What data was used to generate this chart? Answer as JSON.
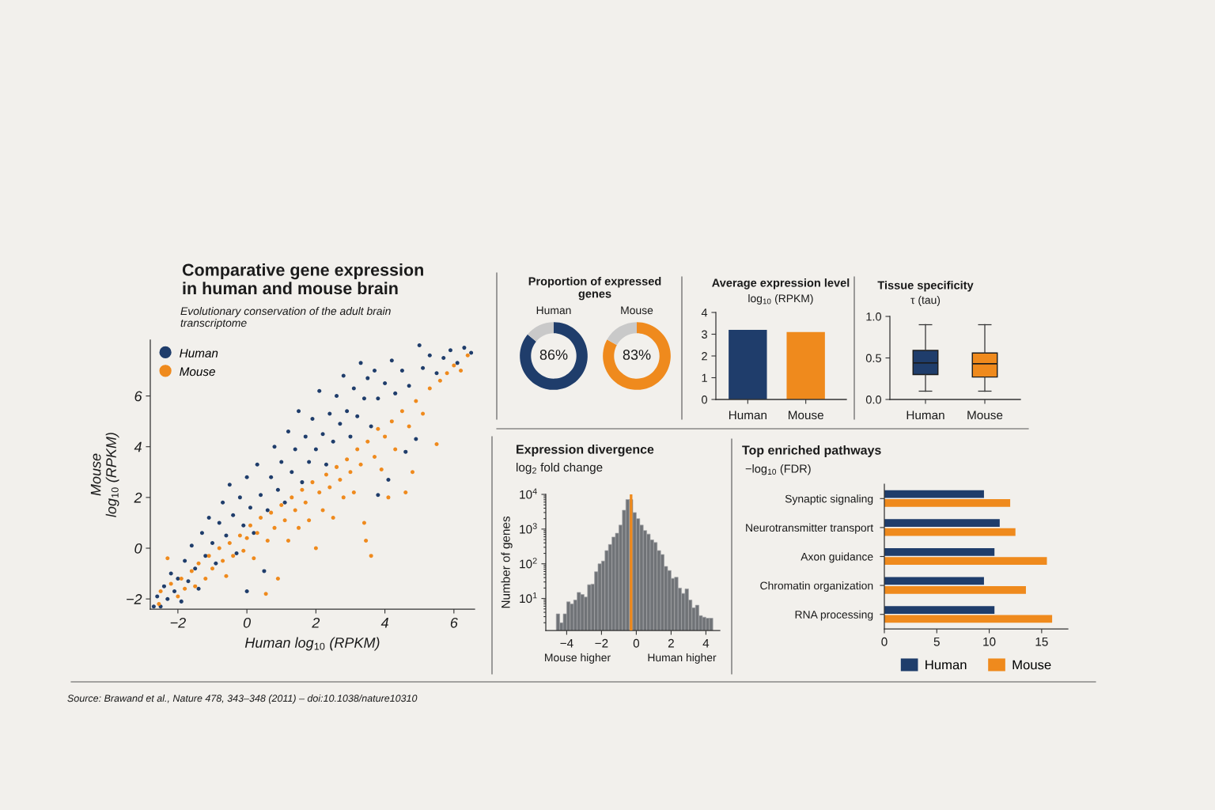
{
  "chart_data": [
    {
      "type": "scatter",
      "title": "Comparative gene expression\nin human and mouse brain",
      "subtitle": "Evolutionary conservation of the adult brain\ntranscriptome",
      "xlabel": "Human log$_{10}$ (RPKM)",
      "ylabel": "Mouse\nlog$_{10}$ (RPKM)",
      "xlim": [
        -2.8,
        6.6
      ],
      "ylim": [
        -2.4,
        8.2
      ],
      "xticks": [
        -2,
        0,
        2,
        4,
        6
      ],
      "yticks": [
        -2,
        0,
        2,
        4,
        6
      ],
      "marker": "circle",
      "legend": "top left",
      "annotations": [
        "Source: Brawand et al., Nature 478, 343–348 (2011) – doi:10.1038/nature10310"
      ],
      "series": [
        {
          "name": "Human",
          "color": "#1f3d6b",
          "x": [
            -2.7,
            -2.6,
            -2.5,
            -2.4,
            -2.3,
            -2.2,
            -2.1,
            -2.0,
            -1.9,
            -1.8,
            -1.7,
            -1.6,
            -1.5,
            -1.4,
            -1.3,
            -1.2,
            -1.1,
            -1.0,
            -0.9,
            -0.8,
            -0.7,
            -0.6,
            -0.5,
            -0.4,
            -0.3,
            -0.2,
            -0.1,
            0.0,
            0.0,
            0.1,
            0.2,
            0.3,
            0.4,
            0.5,
            0.6,
            0.7,
            0.8,
            0.9,
            1.0,
            1.1,
            1.2,
            1.3,
            1.4,
            1.5,
            1.6,
            1.7,
            1.8,
            1.9,
            2.0,
            2.1,
            2.2,
            2.3,
            2.4,
            2.5,
            2.6,
            2.7,
            2.8,
            2.9,
            3.0,
            3.1,
            3.2,
            3.3,
            3.4,
            3.5,
            3.6,
            3.7,
            3.8,
            3.8,
            4.0,
            4.1,
            4.2,
            4.3,
            4.5,
            4.6,
            4.7,
            4.9,
            5.0,
            5.1,
            5.3,
            5.5,
            5.7,
            5.9,
            6.1,
            6.3,
            6.5
          ],
          "values": [
            -2.3,
            -1.9,
            -2.3,
            -1.5,
            -2.0,
            -1.0,
            -1.7,
            -1.2,
            -2.1,
            -0.5,
            -1.3,
            0.1,
            -0.8,
            -1.6,
            0.6,
            -0.3,
            1.2,
            0.2,
            -0.6,
            1.0,
            1.8,
            0.5,
            2.5,
            1.3,
            -0.2,
            2.0,
            0.9,
            2.8,
            -1.7,
            1.6,
            0.6,
            3.3,
            2.1,
            -0.9,
            1.5,
            2.8,
            4.0,
            2.3,
            3.4,
            1.8,
            4.6,
            3.0,
            3.9,
            5.4,
            2.6,
            4.4,
            3.4,
            5.1,
            3.9,
            6.2,
            4.5,
            3.3,
            5.3,
            4.2,
            6.0,
            4.9,
            6.8,
            5.4,
            4.4,
            6.3,
            5.2,
            7.3,
            5.9,
            6.7,
            4.8,
            7.0,
            5.9,
            2.1,
            6.5,
            2.7,
            7.4,
            6.1,
            7.0,
            3.8,
            6.4,
            4.3,
            8.0,
            7.1,
            7.6,
            6.9,
            7.5,
            7.8,
            7.3,
            7.9,
            7.7
          ]
        },
        {
          "name": "Mouse",
          "color": "#ef8a1d",
          "x": [
            -2.55,
            -2.5,
            -2.3,
            -2.2,
            -2.0,
            -1.9,
            -1.8,
            -1.6,
            -1.5,
            -1.4,
            -1.2,
            -1.1,
            -1.0,
            -0.8,
            -0.7,
            -0.6,
            -0.5,
            -0.4,
            -0.2,
            -0.1,
            0.0,
            0.1,
            0.2,
            0.3,
            0.4,
            0.55,
            0.6,
            0.7,
            0.8,
            0.9,
            1.0,
            1.1,
            1.2,
            1.3,
            1.4,
            1.5,
            1.6,
            1.7,
            1.8,
            1.9,
            2.0,
            2.1,
            2.2,
            2.3,
            2.4,
            2.5,
            2.6,
            2.7,
            2.8,
            2.9,
            3.0,
            3.1,
            3.2,
            3.3,
            3.4,
            3.45,
            3.5,
            3.6,
            3.7,
            3.8,
            3.9,
            4.0,
            4.1,
            4.2,
            4.3,
            4.5,
            4.6,
            4.7,
            4.8,
            4.9,
            5.1,
            5.3,
            5.5,
            5.6,
            5.8,
            6.0,
            6.2,
            6.4
          ],
          "values": [
            -2.2,
            -1.7,
            -0.4,
            -1.4,
            -1.9,
            -1.2,
            -1.6,
            -0.9,
            -1.5,
            -0.6,
            -1.2,
            -0.3,
            -0.8,
            0.0,
            -0.5,
            -1.1,
            0.2,
            -0.3,
            0.5,
            -0.1,
            0.4,
            0.9,
            -0.4,
            0.6,
            1.2,
            -1.8,
            0.3,
            1.4,
            0.8,
            -1.2,
            1.7,
            1.1,
            0.3,
            2.0,
            1.5,
            0.8,
            2.3,
            1.8,
            1.1,
            2.6,
            0.0,
            2.2,
            1.5,
            2.9,
            2.4,
            1.2,
            3.2,
            2.7,
            2.0,
            3.5,
            3.0,
            2.2,
            3.9,
            3.3,
            1.0,
            0.3,
            4.2,
            -0.3,
            3.6,
            4.7,
            3.1,
            4.4,
            2.0,
            5.0,
            3.9,
            5.4,
            2.2,
            4.8,
            3.0,
            5.8,
            5.3,
            6.3,
            4.1,
            6.6,
            6.9,
            7.2,
            7.0,
            7.6
          ]
        }
      ]
    },
    {
      "type": "donut",
      "title": "Proportion of expressed\ngenes",
      "subtitle": "Human",
      "categories": [
        null,
        null
      ],
      "values": [
        86,
        14
      ],
      "colors": [
        "#1f3d6b",
        "#c9c9c9"
      ],
      "annotations": [
        "86%"
      ]
    },
    {
      "type": "donut",
      "subtitle": "Mouse",
      "categories": [
        null,
        null
      ],
      "values": [
        83,
        17
      ],
      "colors": [
        "#ef8a1d",
        "#c9c9c9"
      ],
      "annotations": [
        "83%"
      ]
    },
    {
      "type": "bar",
      "title": "Average expression level",
      "subtitle": "log$_{10}$ (RPKM)",
      "categories": [
        "Human",
        "Mouse"
      ],
      "values": [
        3.2,
        3.1
      ],
      "colors": [
        "#1f3d6b",
        "#ef8a1d"
      ],
      "ylim": [
        0,
        4
      ],
      "yticks": [
        0,
        1,
        2,
        3,
        4
      ]
    },
    {
      "type": "box",
      "title": "Tissue specificity",
      "subtitle": "τ (tau)",
      "categories": [
        "Human",
        "Mouse"
      ],
      "colors": [
        "#1f3d6b",
        "#ef8a1d"
      ],
      "boxes": [
        {
          "low": 0.1,
          "q1": 0.3,
          "median": 0.44,
          "q3": 0.59,
          "high": 0.9
        },
        {
          "low": 0.1,
          "q1": 0.27,
          "median": 0.43,
          "q3": 0.56,
          "high": 0.9
        }
      ],
      "ylim": [
        0,
        1
      ],
      "yticks": [
        {
          "value": 0,
          "label": "0.0"
        },
        {
          "value": 0.5,
          "label": "0.5"
        },
        {
          "value": 1,
          "label": "1.0"
        }
      ]
    },
    {
      "type": "histogram",
      "title": "Expression divergence",
      "subtitle": "log$_{2}$ fold change",
      "ylabel": "Number of genes",
      "color": "#707377",
      "log": true,
      "bins": [
        -4.6,
        -4.4,
        -4.2,
        -4.0,
        -3.8,
        -3.6,
        -3.4,
        -3.2,
        -3.0,
        -2.8,
        -2.6,
        -2.4,
        -2.2,
        -2.0,
        -1.8,
        -1.6,
        -1.4,
        -1.2,
        -1.0,
        -0.8,
        -0.6,
        -0.4,
        -0.2,
        0.0,
        0.2,
        0.4,
        0.6,
        0.8,
        1.0,
        1.2,
        1.4,
        1.6,
        1.8,
        2.0,
        2.2,
        2.4,
        2.6,
        2.8,
        3.0,
        3.2,
        3.4,
        3.6,
        3.8,
        4.0,
        4.2,
        4.4
      ],
      "values": [
        3.6,
        2,
        3.6,
        8,
        7,
        9,
        15,
        13,
        11,
        25,
        26,
        59,
        100,
        120,
        240,
        360,
        590,
        760,
        1300,
        3500,
        7100,
        7100,
        3000,
        2000,
        1300,
        910,
        720,
        490,
        410,
        240,
        185,
        84,
        64,
        38,
        41,
        20,
        14,
        19,
        9,
        5.4,
        6.4,
        3.2,
        2.9,
        2.7,
        2.7
      ],
      "xlim": [
        -5.2,
        4.8
      ],
      "ylim": [
        1.2,
        10000
      ],
      "xticks": [
        -4,
        -2,
        0,
        2,
        4
      ],
      "yticks": [
        {
          "value": 10,
          "label": "10$^{1}$"
        },
        {
          "value": 100,
          "label": "10$^{2}$"
        },
        {
          "value": 1000,
          "label": "10$^{3}$"
        },
        {
          "value": 10000,
          "label": "10$^{4}$"
        }
      ],
      "ref_lines": [
        {
          "axis": "x",
          "value": -0.3,
          "color": "#ef8a1d"
        }
      ],
      "annotations": [
        "Mouse higher",
        "Human higher"
      ]
    },
    {
      "type": "bar",
      "orientation": "horizontal",
      "title": "Top enriched pathways",
      "subtitle": "−log$_{10}$ (FDR)",
      "categories": [
        "Synaptic signaling",
        "Neurotransmitter transport",
        "Axon guidance",
        "Chromatin organization",
        "RNA processing"
      ],
      "series": [
        {
          "name": "Human",
          "color": "#1f3d6b",
          "values": [
            9.5,
            11,
            10.5,
            9.5,
            10.5
          ]
        },
        {
          "name": "Mouse",
          "color": "#ef8a1d",
          "values": [
            12,
            12.5,
            15.5,
            13.5,
            16
          ]
        }
      ],
      "xlim": [
        0,
        17.5
      ],
      "xticks": [
        0,
        5,
        10,
        15
      ],
      "legend": "bottom"
    }
  ]
}
